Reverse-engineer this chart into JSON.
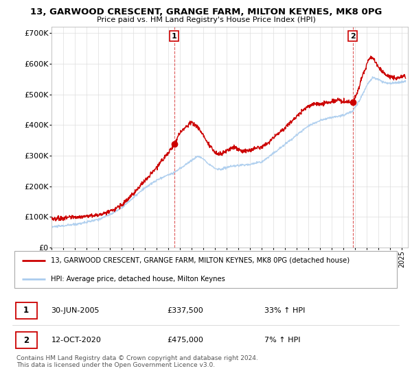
{
  "title": "13, GARWOOD CRESCENT, GRANGE FARM, MILTON KEYNES, MK8 0PG",
  "subtitle": "Price paid vs. HM Land Registry's House Price Index (HPI)",
  "ylabel_ticks": [
    "£0",
    "£100K",
    "£200K",
    "£300K",
    "£400K",
    "£500K",
    "£600K",
    "£700K"
  ],
  "ytick_vals": [
    0,
    100000,
    200000,
    300000,
    400000,
    500000,
    600000,
    700000
  ],
  "ylim": [
    0,
    720000
  ],
  "xlim_start": 1995.0,
  "xlim_end": 2025.5,
  "transaction1": {
    "date_x": 2005.5,
    "price": 337500,
    "label": "1",
    "date_str": "30-JUN-2005",
    "pct": "33%",
    "dir": "↑"
  },
  "transaction2": {
    "date_x": 2020.78,
    "price": 475000,
    "label": "2",
    "date_str": "12-OCT-2020",
    "pct": "7%",
    "dir": "↑"
  },
  "legend_line1": "13, GARWOOD CRESCENT, GRANGE FARM, MILTON KEYNES, MK8 0PG (detached house)",
  "legend_line2": "HPI: Average price, detached house, Milton Keynes",
  "footnote": "Contains HM Land Registry data © Crown copyright and database right 2024.\nThis data is licensed under the Open Government Licence v3.0.",
  "line_color_red": "#cc0000",
  "line_color_blue": "#aaccee",
  "bg_color": "#ffffff",
  "grid_color": "#dddddd"
}
